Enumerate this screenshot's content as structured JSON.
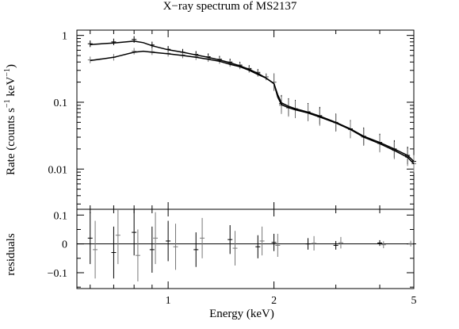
{
  "chart_data": {
    "title": "X−ray spectrum of MS2137",
    "xlabel": "Energy (keV)",
    "x_scale": "log",
    "xlim": [
      0.55,
      5.0
    ],
    "x_ticks": [
      {
        "value": 1,
        "label": "1"
      },
      {
        "value": 2,
        "label": "2"
      },
      {
        "value": 5,
        "label": "5"
      }
    ],
    "panels": [
      {
        "id": "spectrum",
        "type": "line",
        "ylabel_prefix": "Rate (counts s",
        "ylabel_sup1": "−1",
        "ylabel_mid": " keV",
        "ylabel_sup2": "−1",
        "ylabel_suffix": ")",
        "y_scale": "log",
        "ylim": [
          0.0025,
          1.2
        ],
        "y_ticks": [
          {
            "value": 1,
            "label": "1"
          },
          {
            "value": 0.1,
            "label": "0.1"
          },
          {
            "value": 0.01,
            "label": "0.01"
          }
        ],
        "series": [
          {
            "style": "data-with-errors",
            "color": "#000000",
            "x": [
              0.6,
              0.7,
              0.8,
              0.9,
              1.0,
              1.1,
              1.2,
              1.3,
              1.4,
              1.5,
              1.6,
              1.7,
              1.8,
              1.9,
              2.0,
              2.1,
              2.2,
              2.3,
              2.5,
              2.7,
              3.0,
              3.3,
              3.6,
              4.0,
              4.4,
              4.8,
              5.0
            ],
            "y": [
              0.75,
              0.8,
              0.87,
              0.72,
              0.62,
              0.56,
              0.52,
              0.48,
              0.44,
              0.4,
              0.36,
              0.32,
              0.28,
              0.24,
              0.2,
              0.095,
              0.085,
              0.08,
              0.072,
              0.063,
              0.05,
              0.04,
              0.031,
              0.025,
              0.02,
              0.016,
              0.013
            ]
          },
          {
            "style": "data-with-errors",
            "color": "#777777",
            "x": [
              0.6,
              0.7,
              0.8,
              0.9,
              1.0,
              1.1,
              1.2,
              1.3,
              1.4,
              1.5,
              1.6,
              1.7,
              1.8,
              1.9,
              2.0,
              2.1,
              2.2,
              2.3,
              2.5,
              2.7,
              3.0,
              3.3,
              3.6,
              4.0,
              4.4,
              4.8,
              5.0
            ],
            "y": [
              0.43,
              0.47,
              0.58,
              0.57,
              0.54,
              0.51,
              0.48,
              0.45,
              0.42,
              0.38,
              0.35,
              0.31,
              0.27,
              0.24,
              0.2,
              0.09,
              0.082,
              0.078,
              0.07,
              0.06,
              0.049,
              0.039,
              0.03,
              0.024,
              0.019,
              0.015,
              0.012
            ]
          },
          {
            "style": "model",
            "color": "#000000",
            "x": [
              0.6,
              0.7,
              0.8,
              0.85,
              0.9,
              1.0,
              1.1,
              1.2,
              1.3,
              1.4,
              1.5,
              1.6,
              1.7,
              1.8,
              1.9,
              2.0,
              2.05,
              2.1,
              2.2,
              2.3,
              2.5,
              2.7,
              3.0,
              3.3,
              3.6,
              4.0,
              4.4,
              4.8,
              5.0
            ],
            "y": [
              0.73,
              0.77,
              0.82,
              0.78,
              0.7,
              0.61,
              0.56,
              0.51,
              0.47,
              0.43,
              0.39,
              0.35,
              0.31,
              0.27,
              0.23,
              0.19,
              0.13,
              0.098,
              0.087,
              0.08,
              0.071,
              0.062,
              0.05,
              0.04,
              0.031,
              0.025,
              0.02,
              0.016,
              0.013
            ]
          },
          {
            "style": "model",
            "color": "#000000",
            "x": [
              0.6,
              0.7,
              0.8,
              0.85,
              0.9,
              1.0,
              1.1,
              1.2,
              1.3,
              1.4,
              1.5,
              1.6,
              1.7,
              1.8,
              1.9,
              2.0,
              2.05,
              2.1,
              2.2,
              2.3,
              2.5,
              2.7,
              3.0,
              3.3,
              3.6,
              4.0,
              4.4,
              4.8,
              5.0
            ],
            "y": [
              0.42,
              0.47,
              0.56,
              0.58,
              0.56,
              0.53,
              0.5,
              0.47,
              0.44,
              0.41,
              0.37,
              0.34,
              0.3,
              0.26,
              0.23,
              0.19,
              0.12,
              0.092,
              0.083,
              0.077,
              0.069,
              0.06,
              0.049,
              0.039,
              0.03,
              0.024,
              0.019,
              0.015,
              0.012
            ]
          }
        ]
      },
      {
        "id": "residuals",
        "type": "line",
        "ylabel": "residuals",
        "y_scale": "linear",
        "ylim": [
          -0.155,
          0.12
        ],
        "y_ticks": [
          {
            "value": 0.1,
            "label": "0.1"
          },
          {
            "value": 0,
            "label": "0"
          },
          {
            "value": -0.1,
            "label": "−0.1"
          }
        ],
        "zero_line": true,
        "series": [
          {
            "style": "residuals-with-errors",
            "color": "#000000",
            "x": [
              0.6,
              0.7,
              0.8,
              0.9,
              1.0,
              1.2,
              1.5,
              1.8,
              2.0,
              2.5,
              3.0,
              4.0,
              5.0
            ],
            "y": [
              0.02,
              -0.03,
              0.04,
              -0.02,
              0.01,
              -0.02,
              0.015,
              -0.01,
              0.005,
              0.0,
              -0.005,
              0.003,
              0.0
            ],
            "err": [
              0.09,
              0.09,
              0.08,
              0.08,
              0.07,
              0.06,
              0.05,
              0.04,
              0.03,
              0.02,
              0.015,
              0.01,
              0.008
            ]
          },
          {
            "style": "residuals-with-errors",
            "color": "#777777",
            "x": [
              0.62,
              0.72,
              0.82,
              0.92,
              1.05,
              1.25,
              1.55,
              1.85,
              2.05,
              2.6,
              3.1,
              4.1,
              4.9
            ],
            "y": [
              -0.02,
              0.03,
              -0.04,
              0.02,
              -0.01,
              0.02,
              -0.015,
              0.01,
              -0.005,
              0.002,
              0.004,
              -0.003,
              0.001
            ],
            "err": [
              0.1,
              0.1,
              0.09,
              0.09,
              0.08,
              0.07,
              0.06,
              0.05,
              0.04,
              0.025,
              0.02,
              0.012,
              0.01
            ]
          }
        ]
      }
    ]
  }
}
